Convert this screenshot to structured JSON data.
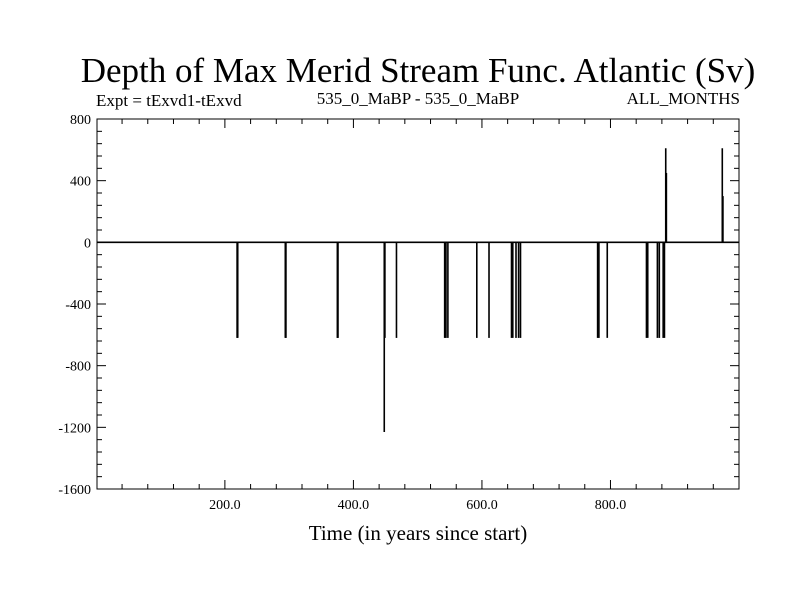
{
  "chart_data": {
    "type": "line",
    "title": "Depth of Max Merid Stream Func. Atlantic (Sv)",
    "subtitle_left": "Expt = tExvd1-tExvd",
    "subtitle_center": "535_0_MaBP - 535_0_MaBP",
    "subtitle_right": "ALL_MONTHS",
    "xlabel": "Time (in years since start)",
    "ylabel": "",
    "xlim": [
      1,
      1000
    ],
    "ylim": [
      -1600,
      800
    ],
    "x_ticks": [
      {
        "value": 200,
        "label": "200.0"
      },
      {
        "value": 400,
        "label": "400.0"
      },
      {
        "value": 600,
        "label": "600.0"
      },
      {
        "value": 800,
        "label": "800.0"
      }
    ],
    "y_ticks": [
      {
        "value": 800,
        "label": "800"
      },
      {
        "value": 400,
        "label": "400"
      },
      {
        "value": 0,
        "label": "0"
      },
      {
        "value": -400,
        "label": "-400"
      },
      {
        "value": -800,
        "label": "-800"
      },
      {
        "value": -1200,
        "label": "-1200"
      },
      {
        "value": -1600,
        "label": "-1600"
      }
    ],
    "baseline": 0,
    "spikes": [
      {
        "x": 219,
        "y": -620
      },
      {
        "x": 220,
        "y": -620
      },
      {
        "x": 294,
        "y": -620
      },
      {
        "x": 295,
        "y": -620
      },
      {
        "x": 375,
        "y": -620
      },
      {
        "x": 376,
        "y": -620
      },
      {
        "x": 448,
        "y": -1230
      },
      {
        "x": 449,
        "y": -620
      },
      {
        "x": 467,
        "y": -620
      },
      {
        "x": 542,
        "y": -620
      },
      {
        "x": 544,
        "y": -620
      },
      {
        "x": 547,
        "y": -620
      },
      {
        "x": 592,
        "y": -620
      },
      {
        "x": 611,
        "y": -620
      },
      {
        "x": 646,
        "y": -620
      },
      {
        "x": 648,
        "y": -620
      },
      {
        "x": 653,
        "y": -620
      },
      {
        "x": 657,
        "y": -620
      },
      {
        "x": 660,
        "y": -620
      },
      {
        "x": 780,
        "y": -620
      },
      {
        "x": 782,
        "y": -620
      },
      {
        "x": 795,
        "y": -620
      },
      {
        "x": 856,
        "y": -620
      },
      {
        "x": 858,
        "y": -620
      },
      {
        "x": 873,
        "y": -620
      },
      {
        "x": 876,
        "y": -620
      },
      {
        "x": 882,
        "y": -620
      },
      {
        "x": 884,
        "y": -620
      },
      {
        "x": 886,
        "y": 610
      },
      {
        "x": 887,
        "y": 450
      },
      {
        "x": 974,
        "y": 610
      },
      {
        "x": 975,
        "y": 300
      }
    ],
    "line_color": "#000000",
    "grid": false,
    "legend": "none"
  }
}
